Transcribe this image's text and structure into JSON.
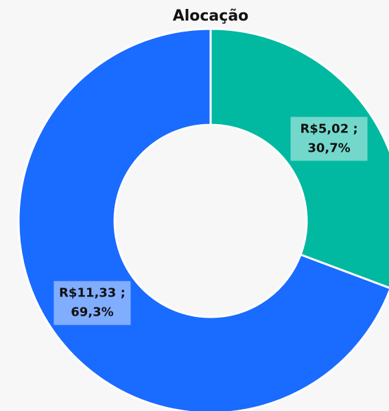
{
  "chart_data": {
    "type": "donut",
    "title": "Alocação",
    "categories": [
      null,
      null
    ],
    "values": [
      5.02,
      11.33
    ],
    "value_labels": [
      [
        "R$5,02 ;",
        "30,7%"
      ],
      [
        "R$11,33 ;",
        "69,3%"
      ]
    ],
    "colors": [
      "#00b9a0",
      "#1a6bff"
    ]
  }
}
